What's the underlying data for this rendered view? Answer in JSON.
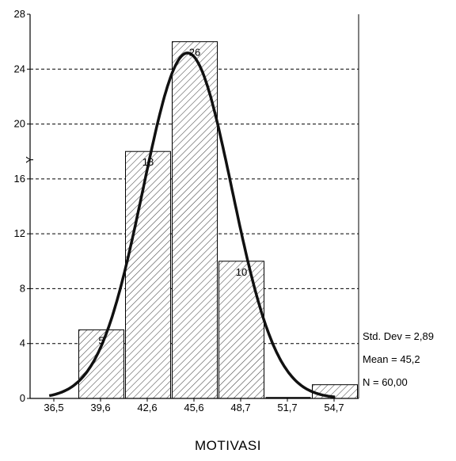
{
  "chart_data": {
    "type": "bar",
    "xlabel": "MOTIVASI",
    "ylabel": "Y",
    "ylim": [
      0,
      28
    ],
    "yticks": [
      "0",
      "4",
      "8",
      "12",
      "16",
      "20",
      "24",
      "28"
    ],
    "categories": [
      "39,6",
      "42,6",
      "45,6",
      "48,7",
      "51,7",
      "54,7"
    ],
    "x_tick_labels": [
      "36,5",
      "39,6",
      "42,6",
      "45,6",
      "48,7",
      "51,7",
      "54,7"
    ],
    "values": [
      5,
      18,
      26,
      10,
      0,
      1
    ],
    "data_labels": [
      "5",
      "18",
      "26",
      "10",
      "",
      ""
    ],
    "grid": "horizontal dashed",
    "normal_curve": {
      "mean": 45.2,
      "std_dev": 2.89,
      "n": 60
    },
    "stats": {
      "std_dev": "Std. Dev = 2,89",
      "mean": "Mean = 45,2",
      "n": "N = 60,00"
    }
  }
}
